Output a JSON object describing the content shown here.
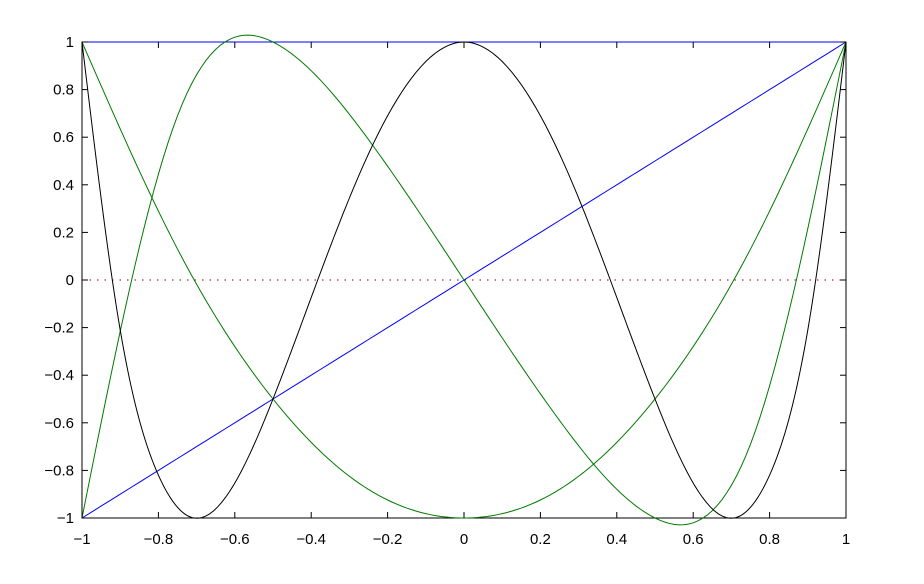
{
  "chart_data": {
    "type": "line",
    "title": "",
    "xlabel": "",
    "ylabel": "",
    "xlim": [
      -1,
      1
    ],
    "ylim": [
      -1,
      1
    ],
    "grid": false,
    "legend": "none",
    "x_ticks": [
      "-1",
      "-0.8",
      "-0.6",
      "-0.4",
      "-0.2",
      "0",
      "0.2",
      "0.4",
      "0.6",
      "0.8",
      "1"
    ],
    "y_ticks": [
      "1",
      "0.8",
      "0.6",
      "0.4",
      "0.2",
      "0",
      "-0.2",
      "-0.4",
      "-0.6",
      "-0.8",
      "-1"
    ],
    "reference_line": {
      "y": 0,
      "style": "dotted",
      "color": "#800000"
    },
    "series": [
      {
        "color": "#0000ff",
        "x": [
          -1,
          1
        ],
        "y": [
          1,
          1
        ]
      },
      {
        "color": "#0000ff",
        "x": [
          -1,
          -0.5,
          0,
          0.5,
          1
        ],
        "y": [
          -1,
          -0.5,
          0,
          0.5,
          1
        ]
      },
      {
        "color": "#007a00",
        "x": [
          -1,
          -0.75,
          -0.5,
          -0.25,
          0,
          0.25,
          0.5,
          0.75,
          1
        ],
        "y": [
          -1,
          0.69,
          1,
          0.59,
          0,
          -0.59,
          -1,
          -0.69,
          1
        ]
      },
      {
        "color": "#007a00",
        "x": [
          -1,
          -0.75,
          -0.5,
          -0.25,
          0,
          0.25,
          0.5,
          0.75,
          1
        ],
        "y": [
          1,
          0.13,
          -0.5,
          -0.88,
          -1,
          -0.88,
          -0.5,
          0.13,
          1
        ]
      },
      {
        "color": "#000000",
        "x": [
          -1,
          -0.9,
          -0.8,
          -0.707,
          -0.5,
          -0.383,
          -0.25,
          0,
          0.25,
          0.383,
          0.5,
          0.707,
          0.8,
          0.9,
          1
        ],
        "y": [
          1,
          -0.21,
          -0.82,
          -1,
          -0.5,
          0,
          0.53,
          1,
          0.53,
          0,
          -0.5,
          -1,
          -0.82,
          -0.21,
          1
        ]
      }
    ]
  }
}
